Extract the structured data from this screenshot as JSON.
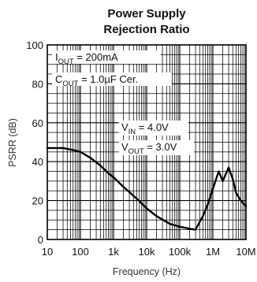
{
  "chart_data": {
    "type": "line",
    "title": [
      "Power Supply",
      "Rejection Ratio"
    ],
    "xlabel": "Frequency (Hz)",
    "ylabel": "PSRR (dB)",
    "x_scale": "log",
    "xlim": [
      10,
      10000000
    ],
    "ylim": [
      0,
      100
    ],
    "x_ticks": [
      {
        "value": 10,
        "label": "10"
      },
      {
        "value": 100,
        "label": "100"
      },
      {
        "value": 1000,
        "label": "1k"
      },
      {
        "value": 10000,
        "label": "10k"
      },
      {
        "value": 100000,
        "label": "100k"
      },
      {
        "value": 1000000,
        "label": "1M"
      },
      {
        "value": 10000000,
        "label": "10M"
      }
    ],
    "y_ticks": [
      0,
      20,
      40,
      60,
      80,
      100
    ],
    "grid": true,
    "series": [
      {
        "color": "#000000",
        "x": [
          10,
          30,
          60,
          100,
          200,
          400,
          700,
          1000,
          2000,
          5000,
          10000,
          20000,
          50000,
          100000,
          150000,
          200000,
          300000,
          500000,
          700000,
          1000000,
          1500000,
          2000000,
          3000000,
          4000000,
          5000000,
          7000000,
          10000000
        ],
        "y": [
          47,
          47,
          46,
          45,
          42,
          38,
          34,
          32,
          27,
          21,
          16,
          12,
          8,
          6.5,
          6,
          5.5,
          5,
          12,
          18,
          26,
          35,
          30,
          37,
          31,
          24,
          20,
          17
        ]
      }
    ],
    "annotations": [
      {
        "main": "I",
        "sub": "OUT",
        "rest": " = 200mA"
      },
      {
        "main": "C",
        "sub": "OUT",
        "rest": " = 1.0µF Cer."
      },
      {
        "main": "V",
        "sub": "IN",
        "rest": " = 4.0V"
      },
      {
        "main": "V",
        "sub": "OUT",
        "rest": " = 3.0V"
      }
    ]
  }
}
